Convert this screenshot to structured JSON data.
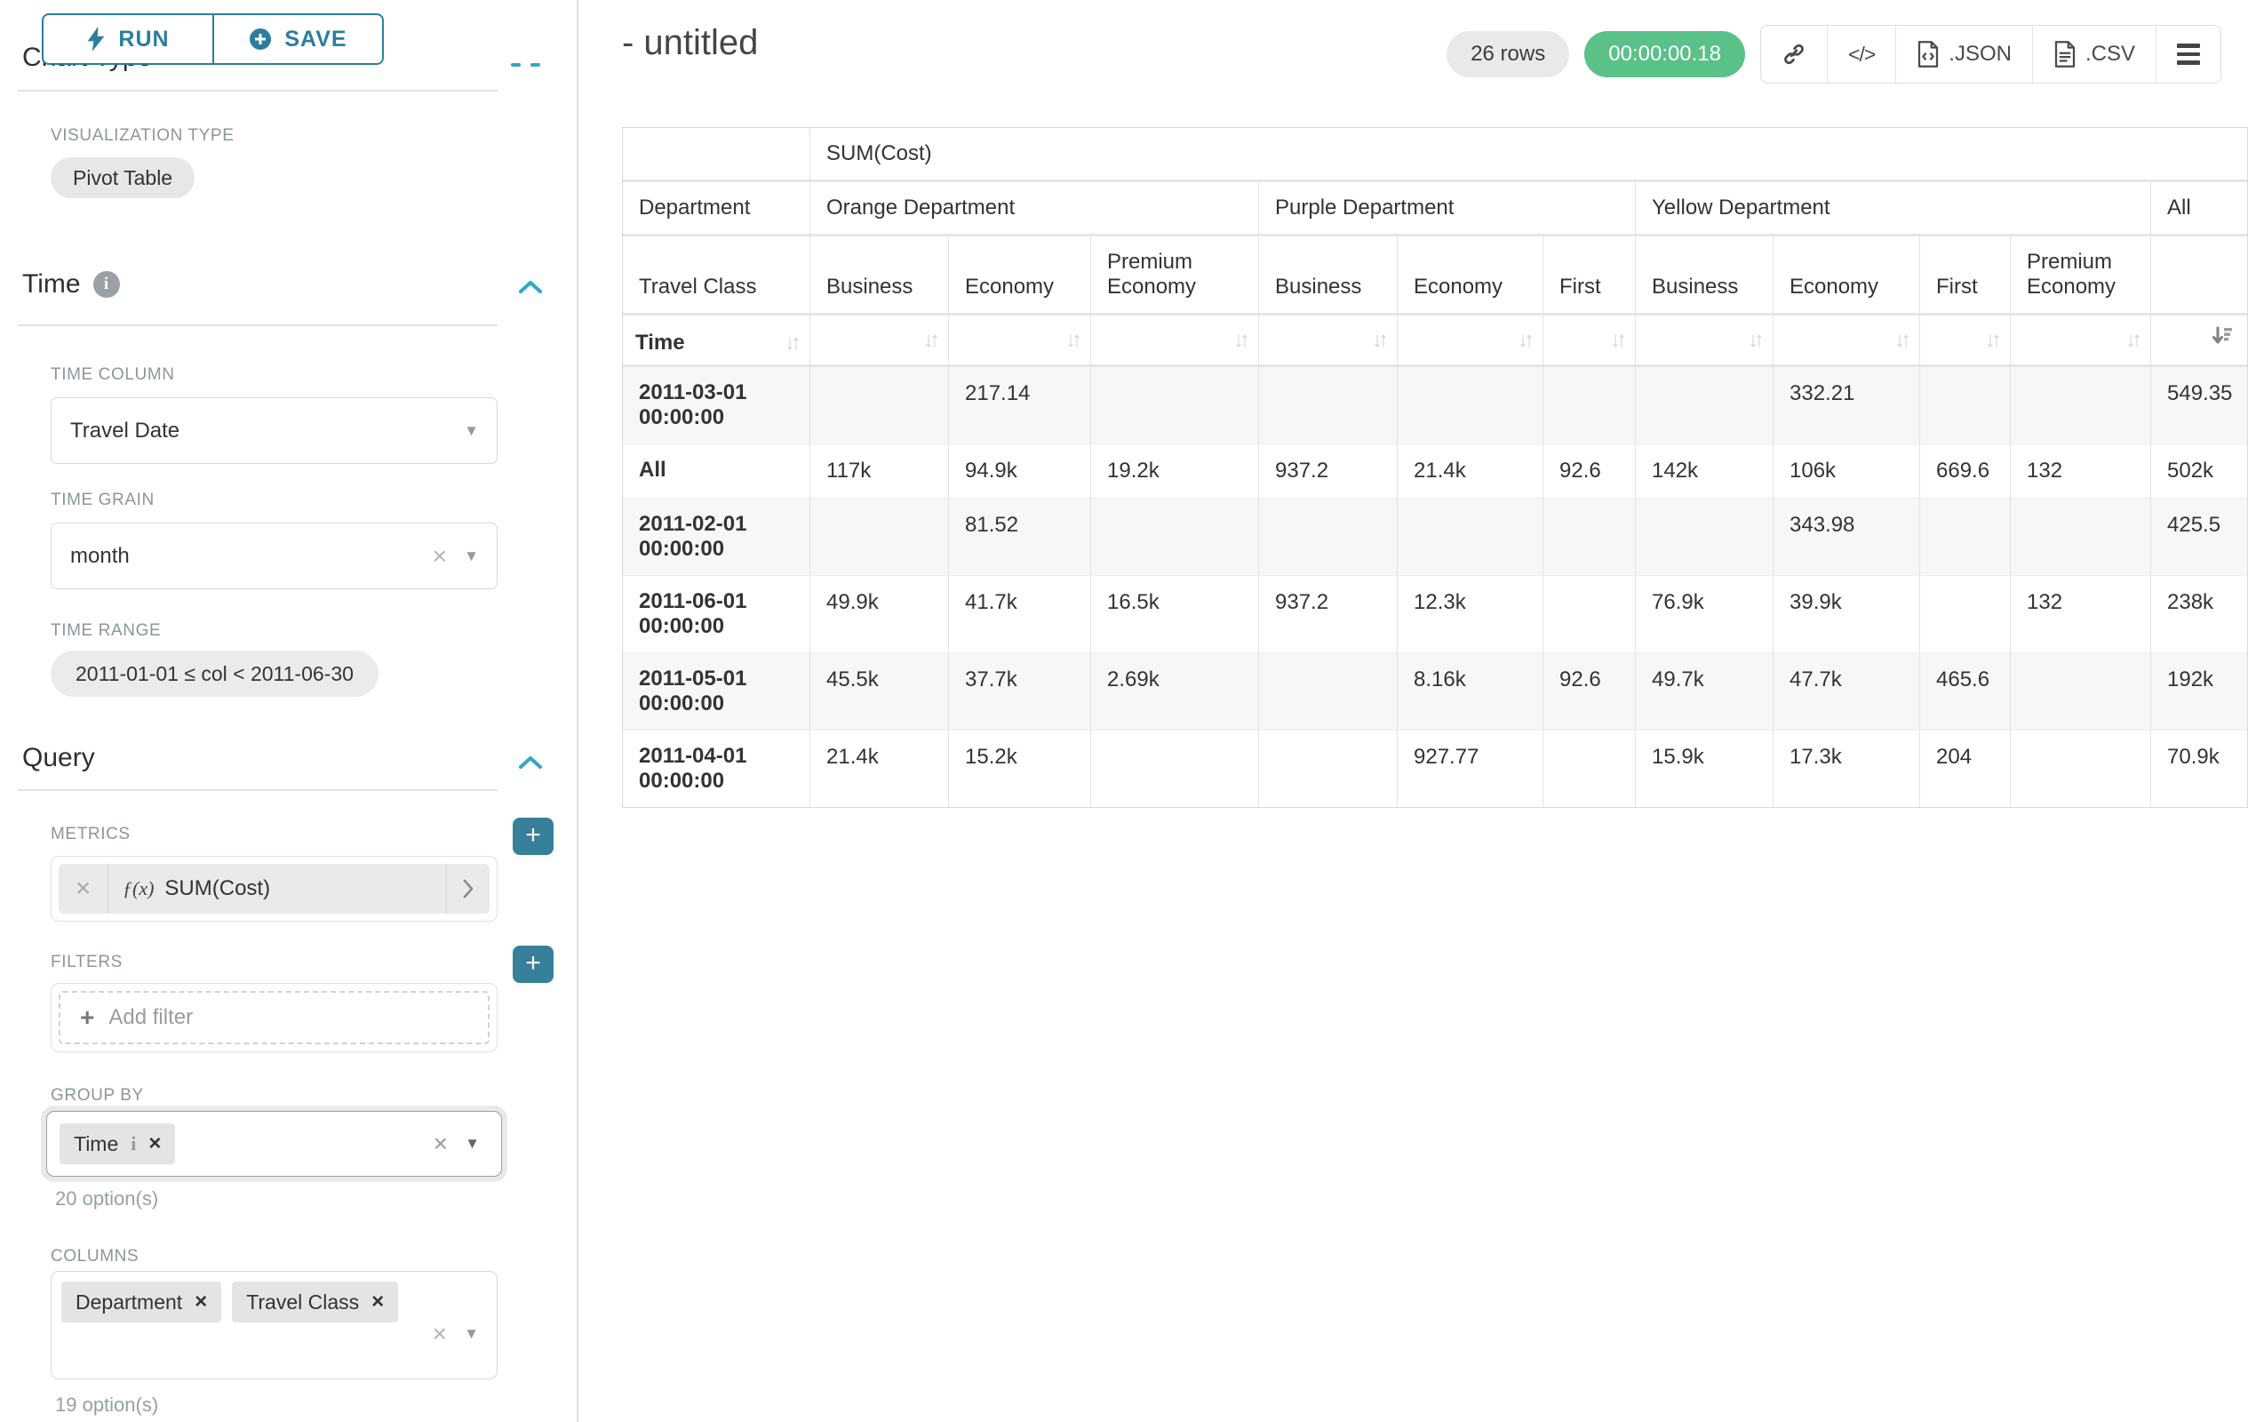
{
  "colors": {
    "accent": "#2c7e9c",
    "accent_bright": "#33a6c6",
    "success": "#5ac189",
    "plus_button": "#37809a"
  },
  "icons": {
    "run_icon": "lightning-bolt",
    "save_icon": "plus-circle",
    "section_collapse_icon": "chevron-up",
    "caret_down_glyph": "▼",
    "clear_glyph": "×",
    "tag_close_glyph": "×",
    "plus_glyph": "+",
    "code_glyph": "</>",
    "sort_inactive_glyph": "↓↑",
    "metric_fx_glyph": "ƒ(x)",
    "info_glyph": "i"
  },
  "sidebar": {
    "run_label": "RUN",
    "save_label": "SAVE",
    "chart_type_heading": "Chart Type",
    "viz_type_label": "VISUALIZATION TYPE",
    "viz_type_value": "Pivot Table",
    "time_section": {
      "title": "Time",
      "time_column_label": "TIME COLUMN",
      "time_column_value": "Travel Date",
      "time_grain_label": "TIME GRAIN",
      "time_grain_value": "month",
      "time_range_label": "TIME RANGE",
      "time_range_value": "2011-01-01 ≤ col < 2011-06-30"
    },
    "query_section": {
      "title": "Query",
      "metrics_label": "METRICS",
      "metric_value": "SUM(Cost)",
      "filters_label": "FILTERS",
      "add_filter_label": "Add filter",
      "group_by_label": "GROUP BY",
      "group_by_tags": [
        "Time"
      ],
      "group_by_options_hint": "20 option(s)",
      "columns_label": "COLUMNS",
      "columns_tags": [
        "Department",
        "Travel Class"
      ],
      "columns_options_hint": "19 option(s)"
    }
  },
  "header": {
    "title": "- untitled",
    "row_count": "26 rows",
    "timer": "00:00:00.18",
    "export_json_label": ".JSON",
    "export_csv_label": ".CSV"
  },
  "pivot_table": {
    "metric_label": "SUM(Cost)",
    "corner_department_label": "Department",
    "corner_travel_class_label": "Travel Class",
    "corner_time_label": "Time",
    "column_groups": [
      {
        "label": "Orange Department",
        "children": [
          "Business",
          "Economy",
          "Premium Economy"
        ]
      },
      {
        "label": "Purple Department",
        "children": [
          "Business",
          "Economy",
          "First"
        ]
      },
      {
        "label": "Yellow Department",
        "children": [
          "Business",
          "Economy",
          "First",
          "Premium Economy"
        ]
      },
      {
        "label": "All",
        "children": [
          ""
        ]
      }
    ],
    "sorted_column_index": 10,
    "rows": [
      {
        "label": "2011-03-01 00:00:00",
        "values": [
          "",
          "217.14",
          "",
          "",
          "",
          "",
          "",
          "332.21",
          "",
          "",
          "549.35"
        ]
      },
      {
        "label": "All",
        "values": [
          "117k",
          "94.9k",
          "19.2k",
          "937.2",
          "21.4k",
          "92.6",
          "142k",
          "106k",
          "669.6",
          "132",
          "502k"
        ]
      },
      {
        "label": "2011-02-01 00:00:00",
        "values": [
          "",
          "81.52",
          "",
          "",
          "",
          "",
          "",
          "343.98",
          "",
          "",
          "425.5"
        ]
      },
      {
        "label": "2011-06-01 00:00:00",
        "values": [
          "49.9k",
          "41.7k",
          "16.5k",
          "937.2",
          "12.3k",
          "",
          "76.9k",
          "39.9k",
          "",
          "132",
          "238k"
        ]
      },
      {
        "label": "2011-05-01 00:00:00",
        "values": [
          "45.5k",
          "37.7k",
          "2.69k",
          "",
          "8.16k",
          "92.6",
          "49.7k",
          "47.7k",
          "465.6",
          "",
          "192k"
        ]
      },
      {
        "label": "2011-04-01 00:00:00",
        "values": [
          "21.4k",
          "15.2k",
          "",
          "",
          "927.77",
          "",
          "15.9k",
          "17.3k",
          "204",
          "",
          "70.9k"
        ]
      }
    ]
  }
}
